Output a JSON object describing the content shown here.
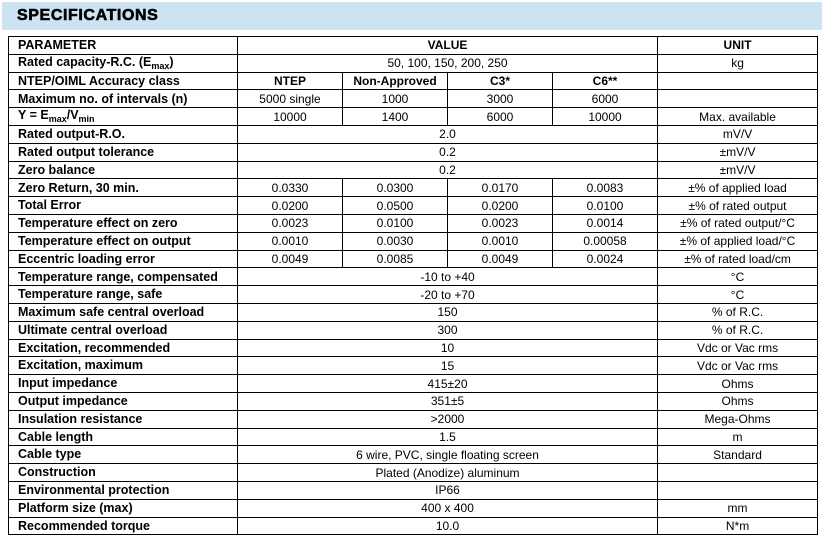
{
  "title": "SPECIFICATIONS",
  "colors": {
    "header_bg": "#cde3f2",
    "border": "#000000",
    "text": "#000000"
  },
  "table": {
    "header": {
      "parameter": "PARAMETER",
      "value": "VALUE",
      "unit": "UNIT"
    },
    "rows": [
      {
        "param": "Rated capacity-R.C. (E~max~)",
        "cells": [
          {
            "text": "50, 100, 150, 200, 250",
            "span": 4
          }
        ],
        "unit": "kg"
      },
      {
        "param": "NTEP/OIML Accuracy class",
        "cells": [
          {
            "text": "NTEP",
            "bold": true
          },
          {
            "text": "Non-Approved",
            "bold": true
          },
          {
            "text": "C3*",
            "bold": true
          },
          {
            "text": "C6**",
            "bold": true
          }
        ],
        "unit": ""
      },
      {
        "param": "Maximum no. of intervals (n)",
        "cells": [
          {
            "text": "5000 single"
          },
          {
            "text": "1000"
          },
          {
            "text": "3000"
          },
          {
            "text": "6000"
          }
        ],
        "unit": ""
      },
      {
        "param": "Y = E~max~/V~min~",
        "cells": [
          {
            "text": "10000"
          },
          {
            "text": "1400"
          },
          {
            "text": "6000"
          },
          {
            "text": "10000"
          }
        ],
        "unit": "Max. available"
      },
      {
        "param": "Rated output-R.O.",
        "cells": [
          {
            "text": "2.0",
            "span": 4
          }
        ],
        "unit": "mV/V"
      },
      {
        "param": "Rated output tolerance",
        "cells": [
          {
            "text": "0.2",
            "span": 4
          }
        ],
        "unit": "±mV/V"
      },
      {
        "param": "Zero balance",
        "cells": [
          {
            "text": "0.2",
            "span": 4
          }
        ],
        "unit": "±mV/V"
      },
      {
        "param": "Zero Return, 30 min.",
        "cells": [
          {
            "text": "0.0330"
          },
          {
            "text": "0.0300"
          },
          {
            "text": "0.0170"
          },
          {
            "text": "0.0083"
          }
        ],
        "unit": "±% of applied load"
      },
      {
        "param": "Total Error",
        "cells": [
          {
            "text": "0.0200"
          },
          {
            "text": "0.0500"
          },
          {
            "text": "0.0200"
          },
          {
            "text": "0.0100"
          }
        ],
        "unit": "±% of rated output"
      },
      {
        "param": "Temperature effect on zero",
        "cells": [
          {
            "text": "0.0023"
          },
          {
            "text": "0.0100"
          },
          {
            "text": "0.0023"
          },
          {
            "text": "0.0014"
          }
        ],
        "unit": "±% of rated output/°C"
      },
      {
        "param": "Temperature effect on output",
        "cells": [
          {
            "text": "0.0010"
          },
          {
            "text": "0.0030"
          },
          {
            "text": "0.0010"
          },
          {
            "text": "0.00058"
          }
        ],
        "unit": "±% of applied load/°C"
      },
      {
        "param": "Eccentric loading error",
        "cells": [
          {
            "text": "0.0049"
          },
          {
            "text": "0.0085"
          },
          {
            "text": "0.0049"
          },
          {
            "text": "0.0024"
          }
        ],
        "unit": "±% of rated load/cm"
      },
      {
        "param": "Temperature range, compensated",
        "cells": [
          {
            "text": "-10 to +40",
            "span": 4
          }
        ],
        "unit": "°C"
      },
      {
        "param": "Temperature range, safe",
        "cells": [
          {
            "text": "-20 to +70",
            "span": 4
          }
        ],
        "unit": "°C"
      },
      {
        "param": "Maximum safe central overload",
        "cells": [
          {
            "text": "150",
            "span": 4
          }
        ],
        "unit": "% of R.C."
      },
      {
        "param": "Ultimate central overload",
        "cells": [
          {
            "text": "300",
            "span": 4
          }
        ],
        "unit": "% of R.C."
      },
      {
        "param": "Excitation, recommended",
        "cells": [
          {
            "text": "10",
            "span": 4
          }
        ],
        "unit": "Vdc or Vac rms"
      },
      {
        "param": "Excitation, maximum",
        "cells": [
          {
            "text": "15",
            "span": 4
          }
        ],
        "unit": "Vdc or Vac rms"
      },
      {
        "param": "Input impedance",
        "cells": [
          {
            "text": "415±20",
            "span": 4
          }
        ],
        "unit": "Ohms"
      },
      {
        "param": "Output impedance",
        "cells": [
          {
            "text": "351±5",
            "span": 4
          }
        ],
        "unit": "Ohms"
      },
      {
        "param": "Insulation resistance",
        "cells": [
          {
            "text": ">2000",
            "span": 4
          }
        ],
        "unit": "Mega-Ohms"
      },
      {
        "param": "Cable length",
        "cells": [
          {
            "text": "1.5",
            "span": 4
          }
        ],
        "unit": "m"
      },
      {
        "param": "Cable type",
        "cells": [
          {
            "text": "6 wire, PVC, single floating screen",
            "span": 4
          }
        ],
        "unit": "Standard"
      },
      {
        "param": "Construction",
        "cells": [
          {
            "text": "Plated (Anodize) aluminum",
            "span": 4
          }
        ],
        "unit": ""
      },
      {
        "param": "Environmental protection",
        "cells": [
          {
            "text": "IP66",
            "span": 4
          }
        ],
        "unit": ""
      },
      {
        "param": "Platform size (max)",
        "cells": [
          {
            "text": "400 x 400",
            "span": 4
          }
        ],
        "unit": "mm"
      },
      {
        "param": "Recommended torque",
        "cells": [
          {
            "text": "10.0",
            "span": 4
          }
        ],
        "unit": "N*m"
      }
    ]
  }
}
